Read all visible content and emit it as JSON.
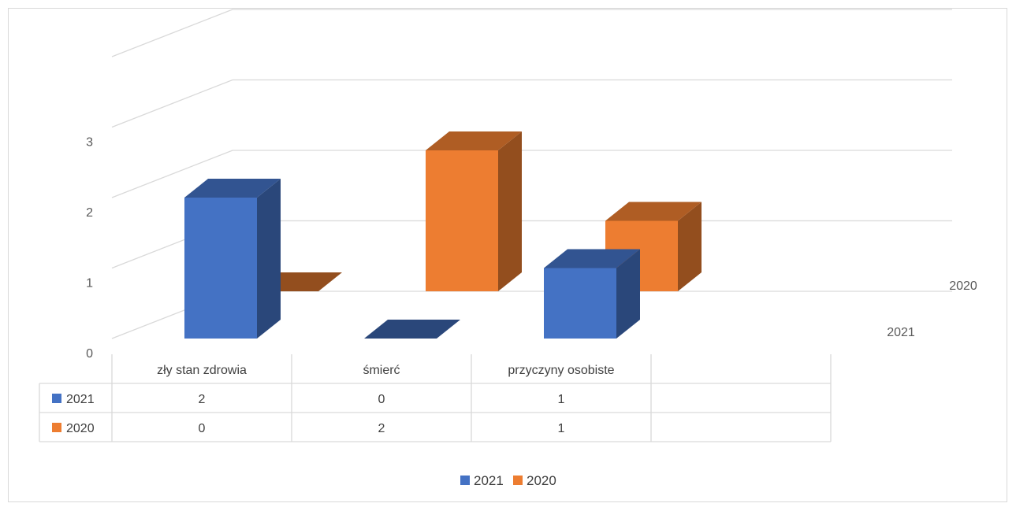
{
  "chart_data": {
    "type": "bar",
    "variant": "3d-column-with-data-table",
    "categories": [
      "zły stan zdrowia",
      "śmierć",
      "przyczyny osobiste"
    ],
    "series": [
      {
        "name": "2021",
        "values": [
          2,
          0,
          1
        ],
        "color": "#4472C4"
      },
      {
        "name": "2020",
        "values": [
          0,
          2,
          1
        ],
        "color": "#ED7D31"
      }
    ],
    "ylim": [
      0,
      3
    ],
    "yticks": [
      "0",
      "1",
      "2",
      "3"
    ],
    "depth_labels": [
      "2020",
      "2021"
    ],
    "grid": true,
    "legend": "bottom",
    "data_table": true
  }
}
